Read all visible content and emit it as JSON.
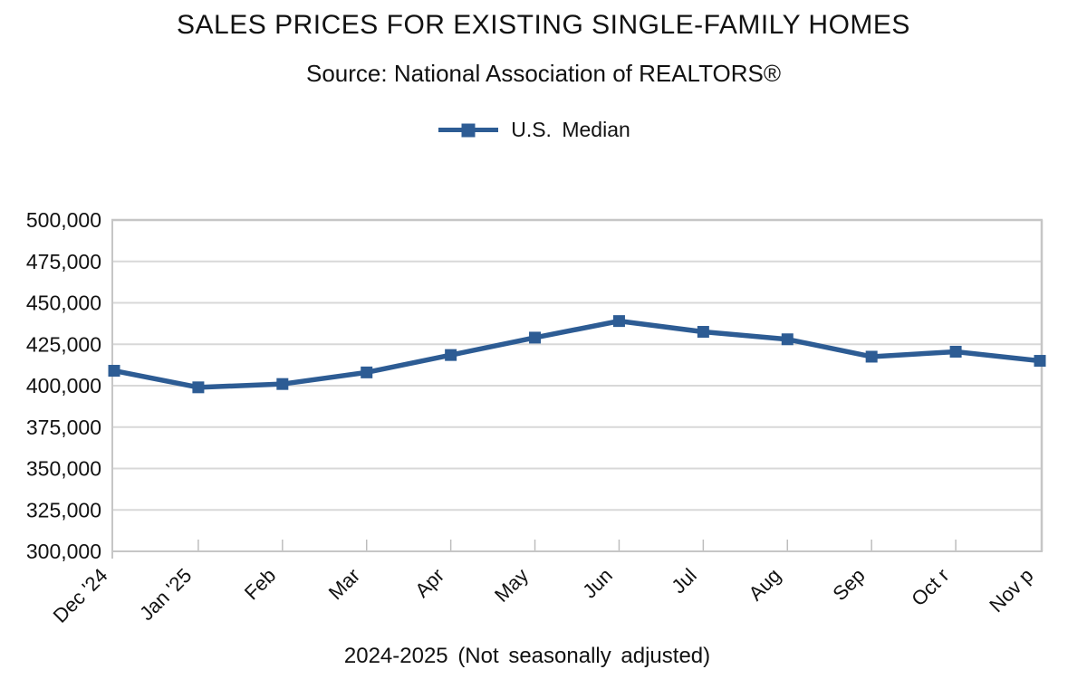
{
  "chart_data": {
    "type": "line",
    "title": "SALES PRICES FOR EXISTING SINGLE-FAMILY HOMES",
    "subtitle": "Source: National Association of REALTORS®",
    "xlabel": "2024-2025 (Not seasonally adjusted)",
    "ylabel": "",
    "categories": [
      "Dec '24",
      "Jan '25",
      "Feb",
      "Mar",
      "Apr",
      "May",
      "Jun",
      "Jul",
      "Aug",
      "Sep",
      "Oct r",
      "Nov p"
    ],
    "series": [
      {
        "name": "U.S. Median",
        "values": [
          409000,
          399000,
          401000,
          408000,
          418500,
          429000,
          439000,
          432500,
          428000,
          417500,
          420500,
          415000
        ]
      }
    ],
    "ylim": [
      300000,
      500000
    ],
    "ytick_step": 25000,
    "ytick_labels": [
      "300,000",
      "325,000",
      "350,000",
      "375,000",
      "400,000",
      "425,000",
      "450,000",
      "475,000",
      "500,000"
    ],
    "grid": "horizontal-only",
    "legend_position": "top-center",
    "marker": "square",
    "colors": {
      "line": "#2D5C94",
      "marker": "#2D5C94",
      "grid": "#D8D8D8",
      "border": "#C6C6C6",
      "tick": "#BDBDBD",
      "text": "#121212"
    }
  }
}
